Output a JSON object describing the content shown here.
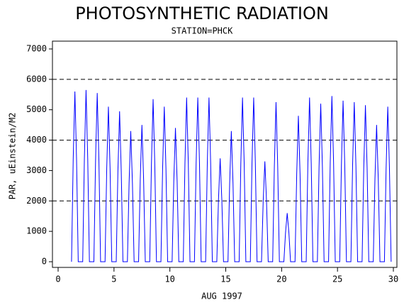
{
  "chart_data": {
    "type": "line",
    "title": "PHOTOSYNTHETIC RADIATION",
    "subtitle": "STATION=PHCK",
    "x_label": "AUG 1997",
    "y_label": "PAR, uEinstein/M2",
    "color": "#0000ff",
    "xlim": [
      0,
      30
    ],
    "xticks": [
      0,
      5,
      10,
      15,
      20,
      25,
      30
    ],
    "ylim": [
      0,
      7000
    ],
    "yticks": [
      0,
      1000,
      2000,
      3000,
      4000,
      5000,
      6000,
      7000
    ],
    "reflines": [
      2000,
      4000,
      6000
    ],
    "x": [
      1.2,
      1.35,
      1.5,
      1.65,
      1.8,
      2.2,
      2.35,
      2.5,
      2.65,
      2.8,
      3.2,
      3.35,
      3.5,
      3.65,
      3.8,
      4.2,
      4.35,
      4.5,
      4.65,
      4.8,
      5.2,
      5.35,
      5.5,
      5.65,
      5.8,
      6.2,
      6.35,
      6.5,
      6.65,
      6.8,
      7.2,
      7.35,
      7.5,
      7.65,
      7.8,
      8.2,
      8.35,
      8.5,
      8.65,
      8.8,
      9.2,
      9.35,
      9.5,
      9.65,
      9.8,
      10.2,
      10.35,
      10.5,
      10.65,
      10.8,
      11.2,
      11.35,
      11.5,
      11.65,
      11.8,
      12.2,
      12.35,
      12.5,
      12.65,
      12.8,
      13.2,
      13.35,
      13.5,
      13.65,
      13.8,
      14.2,
      14.35,
      14.5,
      14.65,
      14.8,
      15.2,
      15.35,
      15.5,
      15.65,
      15.8,
      16.2,
      16.35,
      16.5,
      16.65,
      16.8,
      17.2,
      17.35,
      17.5,
      17.65,
      17.8,
      18.2,
      18.35,
      18.5,
      18.65,
      18.8,
      19.2,
      19.35,
      19.5,
      19.65,
      19.8,
      20.2,
      20.35,
      20.5,
      20.65,
      20.8,
      21.2,
      21.35,
      21.5,
      21.65,
      21.8,
      22.2,
      22.35,
      22.5,
      22.65,
      22.8,
      23.2,
      23.35,
      23.5,
      23.65,
      23.8,
      24.2,
      24.35,
      24.5,
      24.65,
      24.8,
      25.2,
      25.35,
      25.5,
      25.65,
      25.8,
      26.2,
      26.35,
      26.5,
      26.65,
      26.8,
      27.2,
      27.35,
      27.5,
      27.65,
      27.8,
      28.2,
      28.35,
      28.5,
      28.65,
      28.8,
      29.2,
      29.35,
      29.5,
      29.65,
      29.8
    ],
    "values": [
      0,
      3360,
      5600,
      3360,
      0,
      0,
      3390,
      5650,
      3390,
      0,
      0,
      3330,
      5550,
      3330,
      0,
      0,
      3060,
      5100,
      3060,
      0,
      0,
      2970,
      4950,
      2970,
      0,
      0,
      2580,
      4300,
      2580,
      0,
      0,
      2700,
      4500,
      2700,
      0,
      0,
      3210,
      5350,
      3210,
      0,
      0,
      3060,
      5100,
      3060,
      0,
      0,
      2640,
      4400,
      2640,
      0,
      0,
      3240,
      5400,
      3240,
      0,
      0,
      3240,
      5400,
      3240,
      0,
      0,
      3240,
      5400,
      3240,
      0,
      0,
      2040,
      3400,
      2040,
      0,
      0,
      2580,
      4300,
      2580,
      0,
      0,
      3240,
      5400,
      3240,
      0,
      0,
      3240,
      5400,
      3240,
      0,
      0,
      1980,
      3300,
      1980,
      0,
      0,
      3150,
      5250,
      3150,
      0,
      0,
      960,
      1600,
      960,
      0,
      0,
      2880,
      4800,
      2880,
      0,
      0,
      3240,
      5400,
      3240,
      0,
      0,
      3120,
      5200,
      3120,
      0,
      0,
      3270,
      5450,
      3270,
      0,
      0,
      3180,
      5300,
      3180,
      0,
      0,
      3150,
      5250,
      3150,
      0,
      0,
      3090,
      5150,
      3090,
      0,
      0,
      2700,
      4500,
      2700,
      0,
      0,
      3060,
      5100,
      3060,
      0
    ]
  }
}
